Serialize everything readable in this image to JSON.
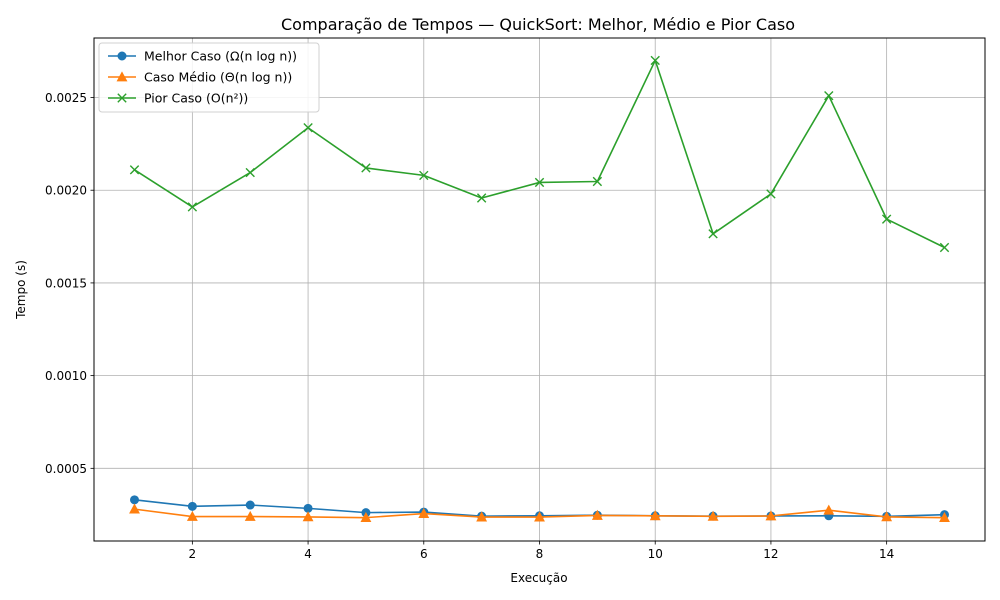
{
  "chart_data": {
    "type": "line",
    "title": "Comparação de Tempos — QuickSort: Melhor, Médio e Pior Caso",
    "xlabel": "Execução",
    "ylabel": "Tempo (s)",
    "xlim": [
      0.3,
      15.7
    ],
    "ylim": [
      0.000108,
      0.002821
    ],
    "x_ticks": [
      2,
      4,
      6,
      8,
      10,
      12,
      14
    ],
    "y_ticks": [
      0.0005,
      0.001,
      0.0015,
      0.002,
      0.0025
    ],
    "x_tick_labels": [
      "2",
      "4",
      "6",
      "8",
      "10",
      "12",
      "14"
    ],
    "y_tick_labels": [
      "0.0005",
      "0.0010",
      "0.0015",
      "0.0020",
      "0.0025"
    ],
    "grid": true,
    "legend_position": "top-left",
    "x": [
      1,
      2,
      3,
      4,
      5,
      6,
      7,
      8,
      9,
      10,
      11,
      12,
      13,
      14,
      15
    ],
    "series": [
      {
        "name": "Melhor Caso (Ω(n log n))",
        "color": "#1f77b4",
        "marker": "circle",
        "values": [
          0.00033,
          0.000295,
          0.000302,
          0.000284,
          0.000261,
          0.000264,
          0.000242,
          0.000244,
          0.000247,
          0.000244,
          0.000242,
          0.000243,
          0.000244,
          0.000241,
          0.00025
        ]
      },
      {
        "name": "Caso Médio (Θ(n log n))",
        "color": "#ff7f0e",
        "marker": "triangle",
        "values": [
          0.00028,
          0.00024,
          0.00024,
          0.000238,
          0.000234,
          0.000256,
          0.000237,
          0.000237,
          0.000246,
          0.000244,
          0.000241,
          0.000243,
          0.000274,
          0.000238,
          0.000234
        ]
      },
      {
        "name": "Pior Caso (O(n²))",
        "color": "#2ca02c",
        "marker": "x",
        "values": [
          0.00211,
          0.00191,
          0.002095,
          0.002337,
          0.00212,
          0.00208,
          0.001958,
          0.002042,
          0.002047,
          0.0027,
          0.001765,
          0.00198,
          0.00251,
          0.001844,
          0.001691
        ]
      }
    ]
  }
}
